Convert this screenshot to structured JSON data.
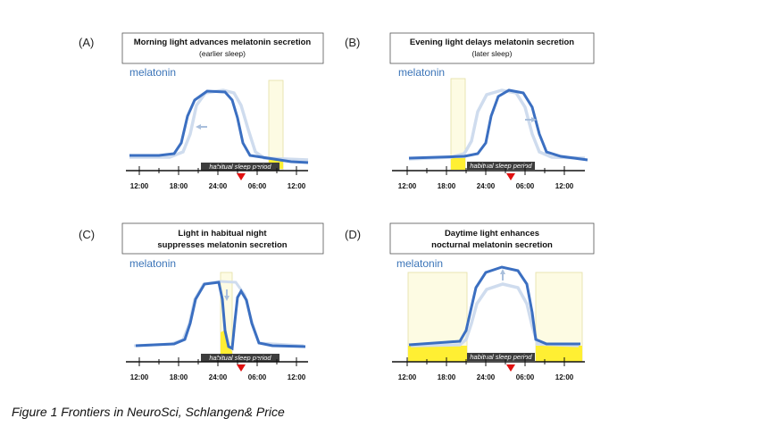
{
  "caption": "Figure 1 Frontiers in NeuroSci, Schlangen& Price",
  "colors": {
    "melatonin": "#3b6fc1",
    "melatonin_reference": "#cfdcee",
    "light_window_fill": "#fdfbe3",
    "light_window_border": "#e4dfa4",
    "suppressed_fill": "#ffef33",
    "marker": "#e01010",
    "sleep_bar": "#3d3d3d"
  },
  "panels": [
    {
      "letter": "(A)",
      "title": "Morning light advances melatonin secretion",
      "subtitle": "(earlier sleep)",
      "melatonin_label": "melatonin",
      "sleep_label": "habitual sleep period",
      "tick_labels": [
        "12:00",
        "18:00",
        "24:00",
        "06:00",
        "12:00"
      ],
      "arrow_direction": "left"
    },
    {
      "letter": "(B)",
      "title": "Evening light delays melatonin secretion",
      "subtitle": "(later sleep)",
      "melatonin_label": "melatonin",
      "sleep_label": "habitual sleep period",
      "tick_labels": [
        "12:00",
        "18:00",
        "24:00",
        "06:00",
        "12:00"
      ],
      "arrow_direction": "right"
    },
    {
      "letter": "(C)",
      "title": "Light in habitual night",
      "subtitle": "suppresses melatonin secretion",
      "melatonin_label": "melatonin",
      "sleep_label": "habitual sleep period",
      "tick_labels": [
        "12:00",
        "18:00",
        "24:00",
        "06:00",
        "12:00"
      ],
      "arrow_direction": "down"
    },
    {
      "letter": "(D)",
      "title": "Daytime light enhances",
      "subtitle": "nocturnal melatonin secretion",
      "melatonin_label": "melatonin",
      "sleep_label": "habitual sleep period",
      "tick_labels": [
        "12:00",
        "18:00",
        "24:00",
        "06:00",
        "12:00"
      ],
      "arrow_direction": "up"
    }
  ]
}
